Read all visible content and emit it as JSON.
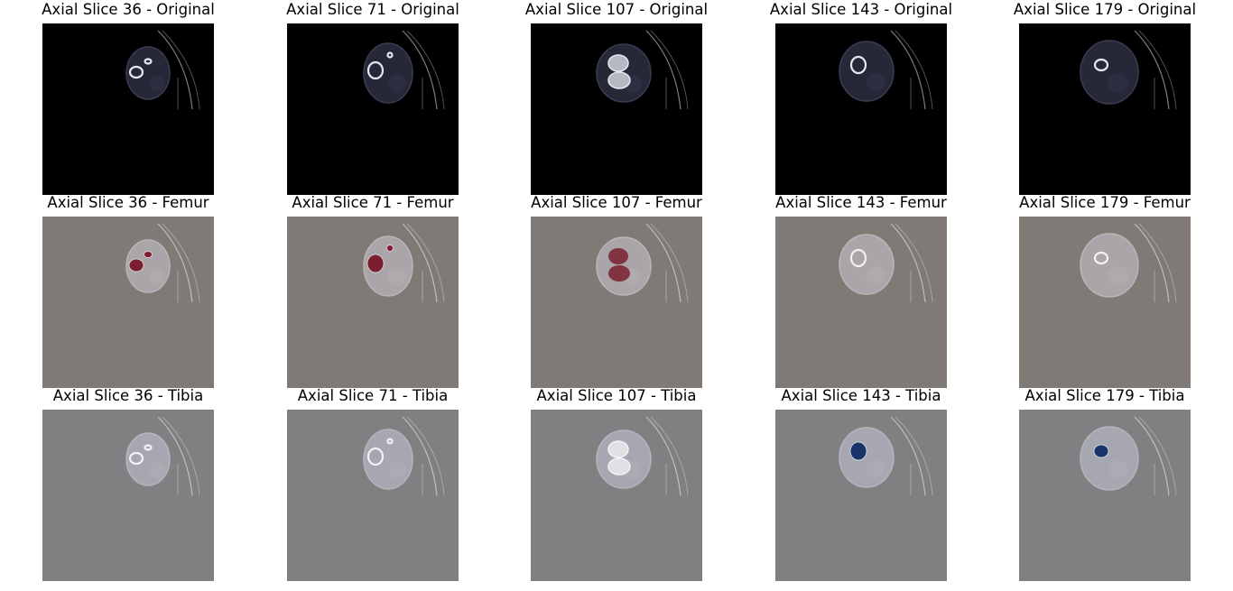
{
  "slices": [
    "36",
    "71",
    "107",
    "143",
    "179"
  ],
  "rows": [
    {
      "label": "Original",
      "bg": "#000000",
      "tissue": "#262838",
      "tissue_stroke": "#3a3d52",
      "bone": "#e6e8f0",
      "mask_color": null,
      "masked_slices": []
    },
    {
      "label": "Femur",
      "bg": "#807a77",
      "tissue": "#a9a5a8",
      "tissue_stroke": "#b9b6b8",
      "bone": "#f2f0f2",
      "mask_color": "#7a1e30",
      "masked_slices": [
        "36",
        "71",
        "107"
      ]
    },
    {
      "label": "Tibia",
      "bg": "#808082",
      "tissue": "#a6a7b0",
      "tissue_stroke": "#b4b5bd",
      "bone": "#f2f2f6",
      "mask_color": "#17346a",
      "masked_slices": [
        "143",
        "179"
      ]
    }
  ],
  "title_prefix": "Axial Slice",
  "title_sep": " - "
}
